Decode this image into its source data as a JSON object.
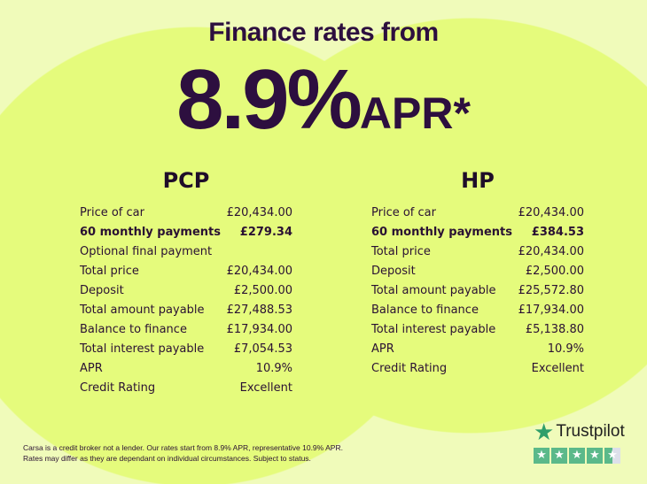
{
  "header": {
    "title": "Finance rates from",
    "rate": "8.9%",
    "apr_label": "APR*"
  },
  "pcp": {
    "title": "PCP",
    "rows": [
      {
        "label": "Price of car",
        "value": "£20,434.00"
      },
      {
        "label": "60 monthly payments",
        "value": "£279.34",
        "bold": true
      },
      {
        "label": "Optional final payment",
        "value": ""
      },
      {
        "label": "Total price",
        "value": "£20,434.00"
      },
      {
        "label": "Deposit",
        "value": "£2,500.00"
      },
      {
        "label": "Total amount payable",
        "value": "£27,488.53"
      },
      {
        "label": "Balance to finance",
        "value": "£17,934.00"
      },
      {
        "label": "Total interest payable",
        "value": "£7,054.53"
      },
      {
        "label": "APR",
        "value": "10.9%"
      },
      {
        "label": "Credit Rating",
        "value": "Excellent"
      }
    ]
  },
  "hp": {
    "title": "HP",
    "rows": [
      {
        "label": "Price of car",
        "value": "£20,434.00"
      },
      {
        "label": "60 monthly payments",
        "value": "£384.53",
        "bold": true
      },
      {
        "label": "Total price",
        "value": "£20,434.00"
      },
      {
        "label": "Deposit",
        "value": "£2,500.00"
      },
      {
        "label": "Total amount payable",
        "value": "£25,572.80"
      },
      {
        "label": "Balance to finance",
        "value": "£17,934.00"
      },
      {
        "label": "Total interest payable",
        "value": "£5,138.80"
      },
      {
        "label": "APR",
        "value": "10.9%"
      },
      {
        "label": "Credit Rating",
        "value": "Excellent"
      }
    ]
  },
  "disclaimer": {
    "line1": "Carsa is a credit broker not a lender. Our rates start from 8.9% APR, representative 10.9% APR.",
    "line2": "Rates may differ as they are dependant on individual circumstances. Subject to status."
  },
  "trustpilot": {
    "name": "Trustpilot",
    "rating": 4.5,
    "icon": "star-icon",
    "color": "#2f9e6a"
  }
}
